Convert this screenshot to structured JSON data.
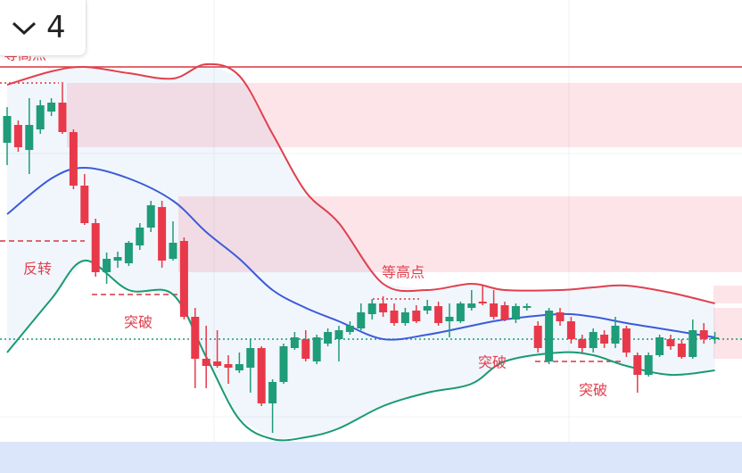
{
  "toolbar": {
    "value": "4"
  },
  "chart_data": {
    "type": "candlestick",
    "ylim": [
      0,
      530
    ],
    "up_color": "#1f9c78",
    "down_color": "#e8394a",
    "candles": [
      [
        370,
        410,
        345,
        400
      ],
      [
        390,
        395,
        360,
        365
      ],
      [
        362,
        420,
        335,
        390
      ],
      [
        385,
        418,
        380,
        412
      ],
      [
        405,
        420,
        400,
        415
      ],
      [
        415,
        438,
        380,
        382
      ],
      [
        382,
        385,
        318,
        322
      ],
      [
        322,
        335,
        278,
        280
      ],
      [
        280,
        285,
        220,
        225
      ],
      [
        225,
        247,
        212,
        240
      ],
      [
        238,
        248,
        230,
        242
      ],
      [
        235,
        260,
        232,
        258
      ],
      [
        255,
        280,
        250,
        275
      ],
      [
        275,
        305,
        270,
        300
      ],
      [
        298,
        305,
        230,
        238
      ],
      [
        240,
        282,
        238,
        258
      ],
      [
        260,
        264,
        172,
        175
      ],
      [
        175,
        185,
        95,
        128
      ],
      [
        128,
        165,
        95,
        120
      ],
      [
        125,
        160,
        118,
        120
      ],
      [
        122,
        132,
        100,
        118
      ],
      [
        115,
        135,
        112,
        122
      ],
      [
        118,
        150,
        90,
        140
      ],
      [
        140,
        142,
        75,
        78
      ],
      [
        78,
        105,
        45,
        102
      ],
      [
        102,
        145,
        100,
        142
      ],
      [
        140,
        158,
        138,
        152
      ],
      [
        150,
        160,
        125,
        128
      ],
      [
        125,
        155,
        122,
        152
      ],
      [
        145,
        162,
        142,
        158
      ],
      [
        150,
        165,
        125,
        160
      ],
      [
        158,
        170,
        155,
        165
      ],
      [
        162,
        190,
        160,
        180
      ],
      [
        178,
        195,
        172,
        190
      ],
      [
        190,
        198,
        175,
        180
      ],
      [
        182,
        190,
        165,
        168
      ],
      [
        168,
        185,
        165,
        180
      ],
      [
        182,
        188,
        168,
        170
      ],
      [
        182,
        194,
        178,
        187
      ],
      [
        187,
        192,
        165,
        168
      ],
      [
        170,
        190,
        152,
        175
      ],
      [
        170,
        192,
        168,
        190
      ],
      [
        185,
        205,
        182,
        190
      ],
      [
        192,
        210,
        188,
        190
      ],
      [
        190,
        205,
        172,
        175
      ],
      [
        188,
        192,
        170,
        172
      ],
      [
        172,
        190,
        168,
        187
      ],
      [
        185,
        190,
        182,
        187
      ],
      [
        165,
        170,
        135,
        140
      ],
      [
        125,
        185,
        122,
        182
      ],
      [
        180,
        185,
        165,
        170
      ],
      [
        170,
        175,
        145,
        150
      ],
      [
        150,
        155,
        135,
        140
      ],
      [
        140,
        162,
        135,
        158
      ],
      [
        155,
        160,
        140,
        145
      ],
      [
        145,
        175,
        140,
        165
      ],
      [
        162,
        165,
        130,
        135
      ],
      [
        132,
        135,
        90,
        110
      ],
      [
        110,
        135,
        108,
        132
      ],
      [
        132,
        155,
        130,
        152
      ],
      [
        150,
        155,
        138,
        142
      ],
      [
        145,
        150,
        128,
        130
      ],
      [
        130,
        172,
        128,
        160
      ],
      [
        160,
        168,
        145,
        150
      ],
      [
        150,
        158,
        145,
        152
      ]
    ],
    "series": [
      {
        "color": "#e0404e",
        "x": [
          0,
          4,
          7,
          11,
          15,
          18,
          21,
          24,
          27,
          30,
          34,
          38,
          42,
          45,
          50,
          53,
          56,
          60,
          64
        ],
        "values": [
          435,
          450,
          455,
          448,
          442,
          458,
          445,
          380,
          315,
          280,
          212,
          205,
          212,
          205,
          205,
          208,
          210,
          202,
          190
        ]
      },
      {
        "color": "#3b5bdb",
        "x": [
          0,
          4,
          7,
          11,
          15,
          18,
          21,
          24,
          27,
          30,
          34,
          38,
          42,
          45,
          50,
          53,
          56,
          60,
          64
        ],
        "values": [
          290,
          330,
          342,
          330,
          305,
          270,
          240,
          205,
          185,
          170,
          150,
          155,
          165,
          172,
          178,
          175,
          168,
          160,
          152
        ]
      },
      {
        "color": "#1a9a72",
        "x": [
          0,
          4,
          7,
          11,
          15,
          18,
          21,
          24,
          27,
          30,
          34,
          38,
          42,
          45,
          50,
          53,
          56,
          60,
          64
        ],
        "values": [
          135,
          195,
          238,
          205,
          200,
          130,
          60,
          38,
          40,
          50,
          75,
          90,
          100,
          125,
          135,
          132,
          120,
          110,
          115
        ]
      }
    ],
    "annotations": [
      "等高点",
      "反转",
      "突破",
      "等高点",
      "突破",
      "突破"
    ]
  }
}
